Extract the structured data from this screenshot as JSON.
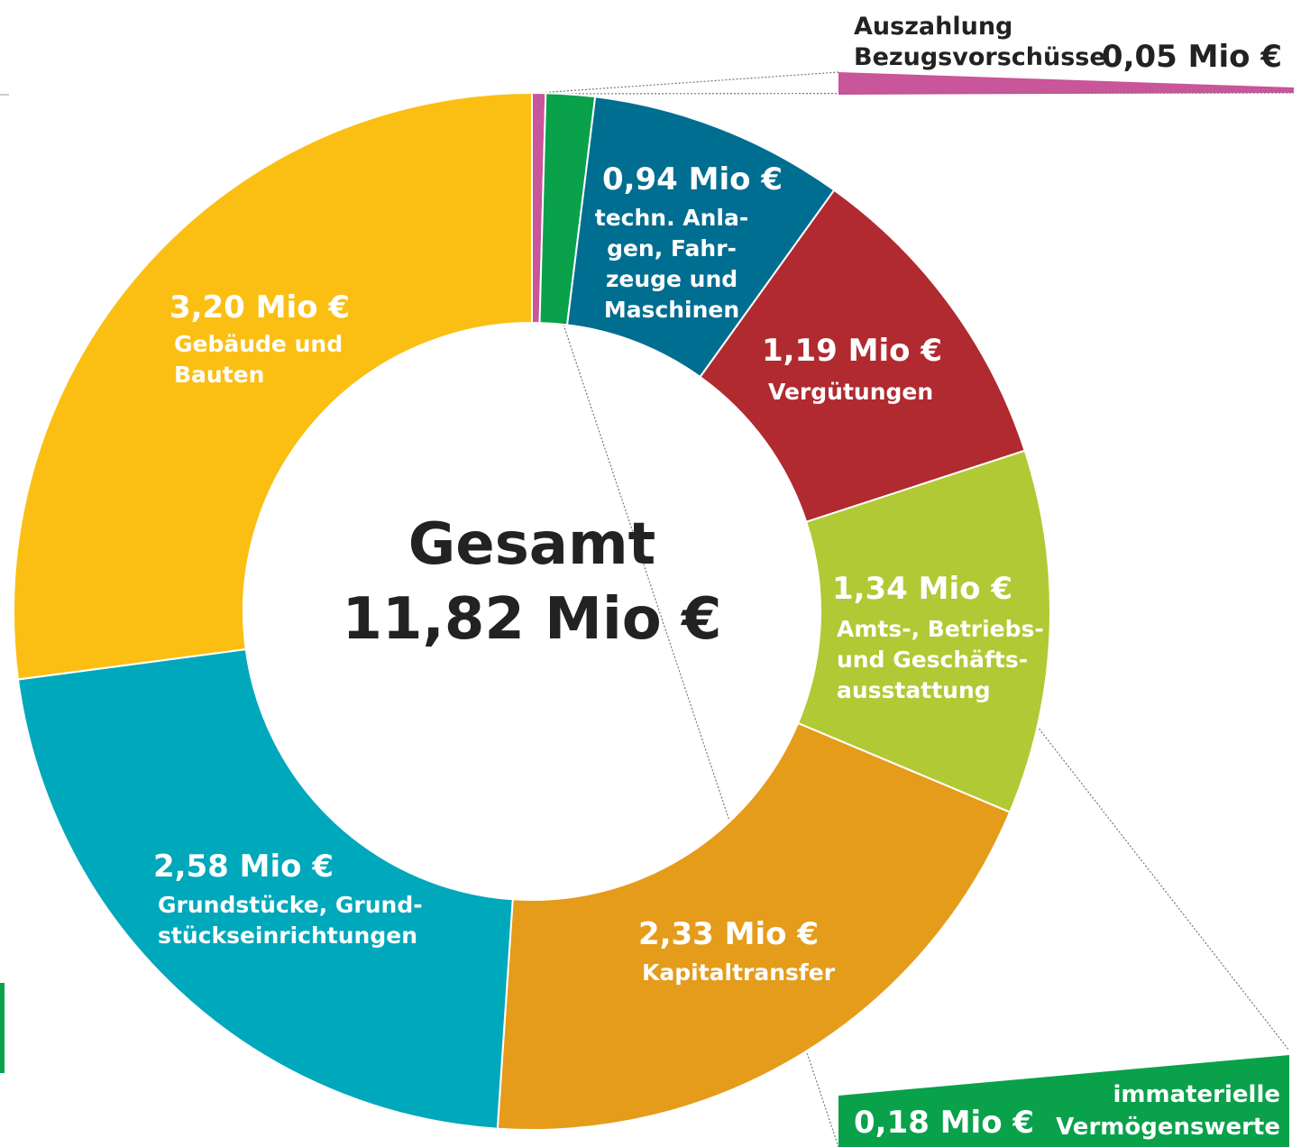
{
  "chart_data": {
    "type": "donut",
    "center_title": "Gesamt",
    "center_value": "11,82 Mio €",
    "categories": [
      "Auszahlung\nBezugsvorschüsse",
      "immaterielle\nVermögenswerte",
      "techn. Anla-\ngen, Fahr-\nzeuge und\nMaschinen",
      "Vergütungen",
      "Amts-, Betriebs-\nund Geschäfts-\nausstattung",
      "Kapitaltransfer",
      "Grundstücke, Grund-\nstückseinrichtungen",
      "Gebäude und\nBauten"
    ],
    "values": [
      0.05,
      0.18,
      0.94,
      1.19,
      1.34,
      2.33,
      2.58,
      3.2
    ],
    "value_labels": [
      "0,05 Mio €",
      "0,18 Mio €",
      "0,94 Mio €",
      "1,19 Mio €",
      "1,34 Mio €",
      "2,33 Mio €",
      "2,58 Mio €",
      "3,20 Mio €"
    ],
    "colors": [
      "#c9559a",
      "#0aa14b",
      "#006e91",
      "#b02a30",
      "#b1c934",
      "#e59c1b",
      "#00a8bb",
      "#fbbf14"
    ]
  }
}
